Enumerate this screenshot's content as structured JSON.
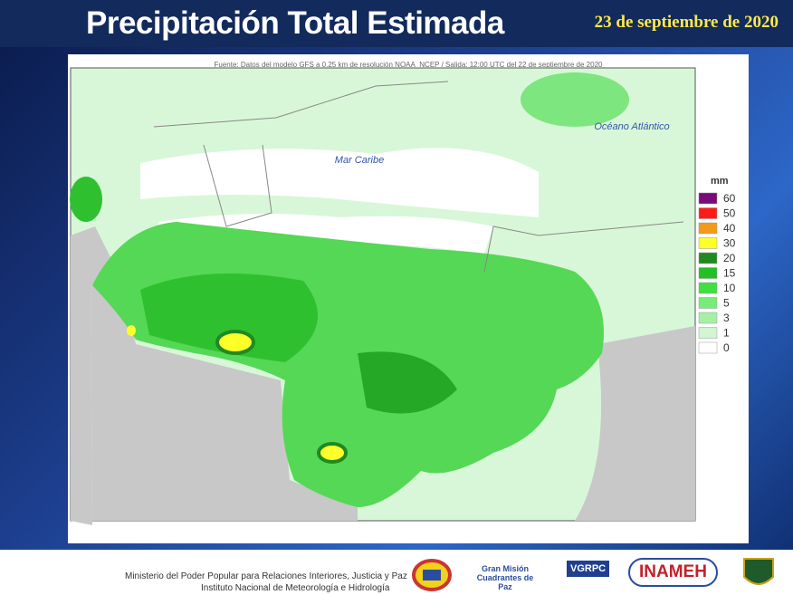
{
  "header": {
    "title": "Precipitación Total Estimada",
    "date": "23 de septiembre de 2020"
  },
  "map": {
    "source": "Fuente: Datos del modelo GFS a 0.25 km de resolución NOAA_NCEP / Salida: 12:00 UTC del 22 de septiembre de 2020",
    "labels": [
      "Mar Caribe",
      "Océano Atlántico"
    ]
  },
  "legend": {
    "unit": "mm",
    "items": [
      {
        "label": "60",
        "color": "#7a0a7a"
      },
      {
        "label": "50",
        "color": "#ff1a1a"
      },
      {
        "label": "40",
        "color": "#f39a1a"
      },
      {
        "label": "30",
        "color": "#ffff2a"
      },
      {
        "label": "20",
        "color": "#1f8a1f"
      },
      {
        "label": "15",
        "color": "#22c022"
      },
      {
        "label": "10",
        "color": "#3fe03f"
      },
      {
        "label": "5",
        "color": "#78ec78"
      },
      {
        "label": "3",
        "color": "#a6f0a6"
      },
      {
        "label": "1",
        "color": "#d2f6d2"
      },
      {
        "label": "0",
        "color": "#ffffff"
      }
    ]
  },
  "footer": {
    "ministry": "Ministerio del Poder Popular para Relaciones Interiores, Justicia y Paz",
    "institute": "Instituto  Nacional de Meteorología e Hidrología",
    "logos": [
      "Gran Misión Cuadrantes de Paz",
      "VGRPC",
      "INAMEH"
    ]
  }
}
